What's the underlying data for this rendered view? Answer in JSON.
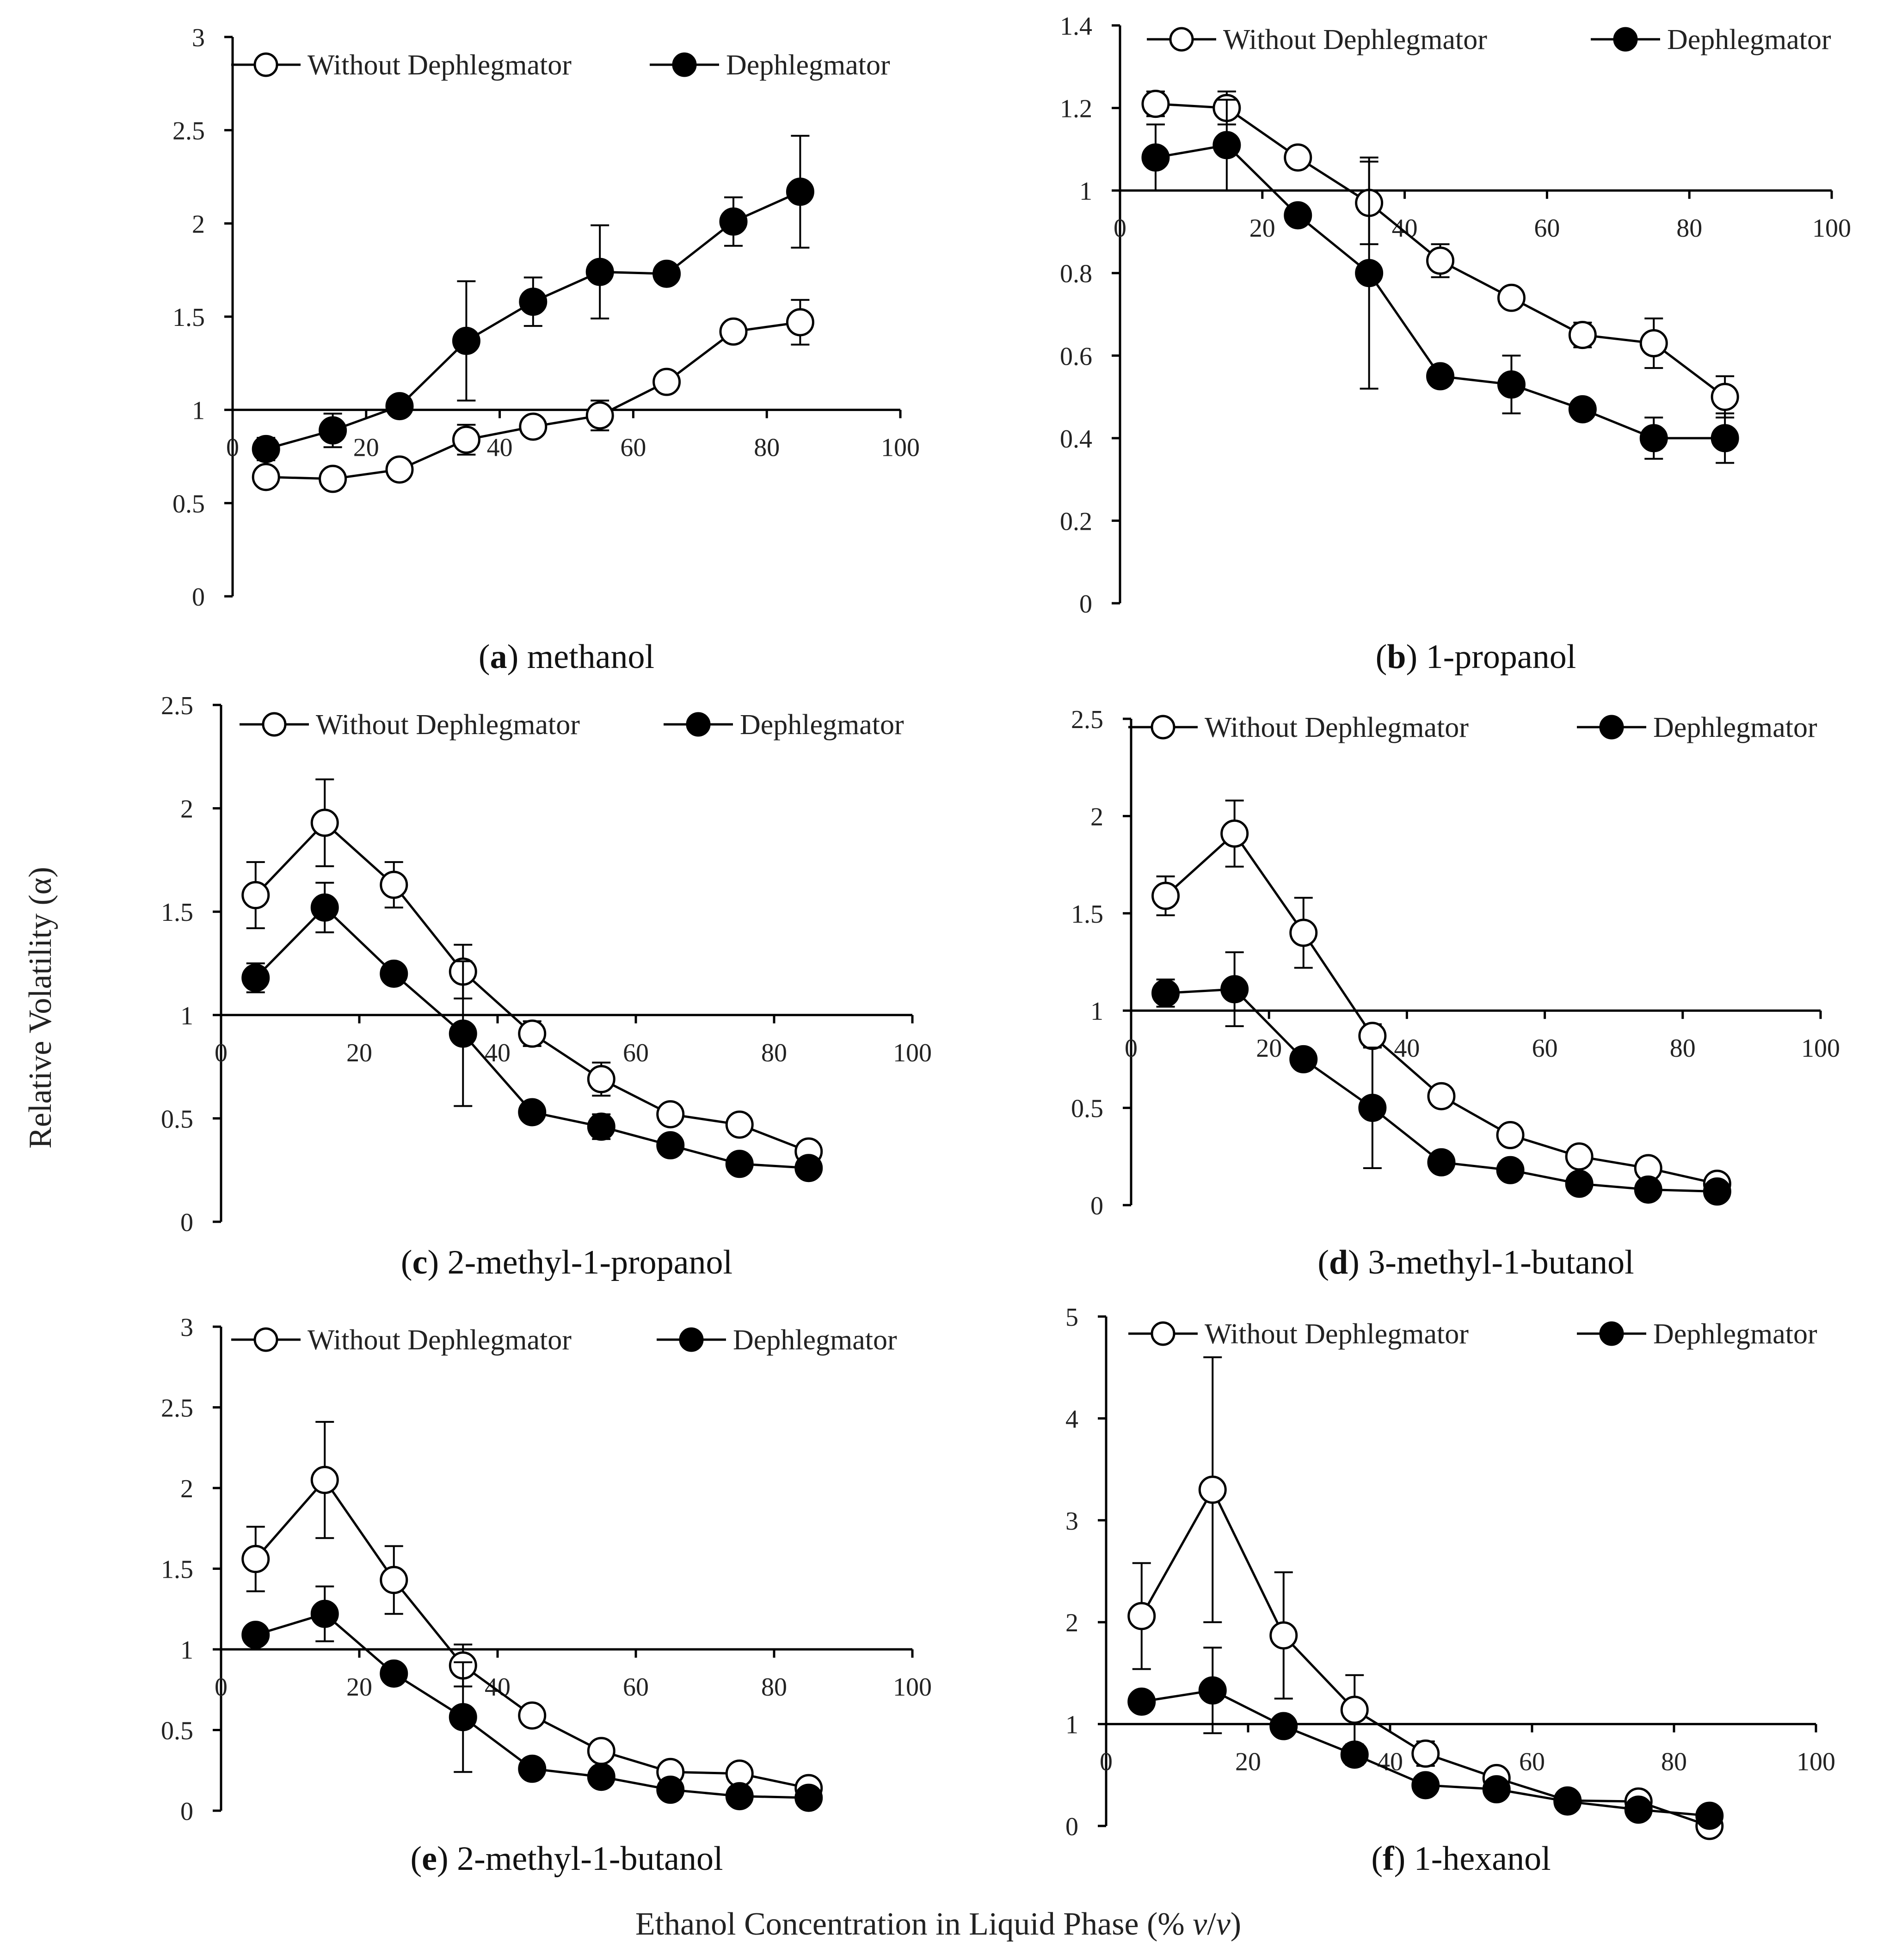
{
  "figure": {
    "y_axis_title": "Relative Volatility (α)",
    "x_axis_title": "Ethanol Concentration in Liquid Phase (% v/v)"
  },
  "chart_data": [
    {
      "type": "line",
      "panel_letter": "a",
      "caption": "methanol",
      "x": [
        5,
        15,
        25,
        35,
        45,
        55,
        65,
        75,
        85
      ],
      "xlim": [
        0,
        100
      ],
      "xticks": [
        0,
        20,
        40,
        60,
        80,
        100
      ],
      "ylim": [
        0,
        3
      ],
      "yticks": [
        0,
        0.5,
        1,
        1.5,
        2,
        2.5,
        3
      ],
      "ytick_labels": [
        "0",
        "0.5",
        "1",
        "1.5",
        "2",
        "2.5",
        "3"
      ],
      "x_axis_at": 1,
      "series": [
        {
          "name": "Without Dephlegmator",
          "marker": "open",
          "values": [
            0.64,
            0.63,
            0.68,
            0.84,
            0.91,
            0.97,
            1.15,
            1.42,
            1.47
          ],
          "errors": [
            0.03,
            0.03,
            0.03,
            0.08,
            0.03,
            0.08,
            0.03,
            0.03,
            0.12
          ]
        },
        {
          "name": "Dephlegmator",
          "marker": "filled",
          "values": [
            0.79,
            0.89,
            1.02,
            1.37,
            1.58,
            1.74,
            1.73,
            2.01,
            2.17
          ],
          "errors": [
            0.06,
            0.09,
            0.04,
            0.32,
            0.13,
            0.25,
            0.04,
            0.13,
            0.3
          ]
        }
      ]
    },
    {
      "type": "line",
      "panel_letter": "b",
      "caption": "1-propanol",
      "x": [
        5,
        15,
        25,
        35,
        45,
        55,
        65,
        75,
        85
      ],
      "xlim": [
        0,
        100
      ],
      "xticks": [
        0,
        20,
        40,
        60,
        80,
        100
      ],
      "ylim": [
        0,
        1.4
      ],
      "yticks": [
        0,
        0.2,
        0.4,
        0.6,
        0.8,
        1,
        1.2,
        1.4
      ],
      "ytick_labels": [
        "0",
        "0.2",
        "0.4",
        "0.6",
        "0.8",
        "1",
        "1.2",
        "1.4"
      ],
      "x_axis_at": 1,
      "series": [
        {
          "name": "Without Dephlegmator",
          "marker": "open",
          "values": [
            1.21,
            1.2,
            1.08,
            0.97,
            0.83,
            0.74,
            0.65,
            0.63,
            0.5
          ],
          "errors": [
            0.03,
            0.04,
            0.02,
            0.1,
            0.04,
            0.02,
            0.03,
            0.06,
            0.05
          ]
        },
        {
          "name": "Dephlegmator",
          "marker": "filled",
          "values": [
            1.08,
            1.11,
            0.94,
            0.8,
            0.55,
            0.53,
            0.47,
            0.4,
            0.4
          ],
          "errors": [
            0.08,
            0.11,
            0.02,
            0.28,
            0.02,
            0.07,
            0.02,
            0.05,
            0.06
          ]
        }
      ]
    },
    {
      "type": "line",
      "panel_letter": "c",
      "caption": "2-methyl-1-propanol",
      "x": [
        5,
        15,
        25,
        35,
        45,
        55,
        65,
        75,
        85
      ],
      "xlim": [
        0,
        100
      ],
      "xticks": [
        0,
        20,
        40,
        60,
        80,
        100
      ],
      "ylim": [
        0,
        2.5
      ],
      "yticks": [
        0,
        0.5,
        1,
        1.5,
        2,
        2.5
      ],
      "ytick_labels": [
        "0",
        "0.5",
        "1",
        "1.5",
        "2",
        "2.5"
      ],
      "x_axis_at": 1,
      "series": [
        {
          "name": "Without Dephlegmator",
          "marker": "open",
          "values": [
            1.58,
            1.93,
            1.63,
            1.21,
            0.91,
            0.69,
            0.52,
            0.47,
            0.34
          ],
          "errors": [
            0.16,
            0.21,
            0.11,
            0.13,
            0.06,
            0.08,
            0.03,
            0.03,
            0.03
          ]
        },
        {
          "name": "Dephlegmator",
          "marker": "filled",
          "values": [
            1.18,
            1.52,
            1.2,
            0.91,
            0.53,
            0.46,
            0.37,
            0.28,
            0.26
          ],
          "errors": [
            0.07,
            0.12,
            0.04,
            0.35,
            0.03,
            0.06,
            0.03,
            0.03,
            0.03
          ]
        }
      ]
    },
    {
      "type": "line",
      "panel_letter": "d",
      "caption": "3-methyl-1-butanol",
      "x": [
        5,
        15,
        25,
        35,
        45,
        55,
        65,
        75,
        85
      ],
      "xlim": [
        0,
        100
      ],
      "xticks": [
        0,
        20,
        40,
        60,
        80,
        100
      ],
      "ylim": [
        0,
        2.5
      ],
      "yticks": [
        0,
        0.5,
        1,
        1.5,
        2,
        2.5
      ],
      "ytick_labels": [
        "0",
        "0.5",
        "1",
        "1.5",
        "2",
        "2.5"
      ],
      "x_axis_at": 1,
      "series": [
        {
          "name": "Without Dephlegmator",
          "marker": "open",
          "values": [
            1.59,
            1.91,
            1.4,
            0.87,
            0.56,
            0.36,
            0.25,
            0.19,
            0.11
          ],
          "errors": [
            0.1,
            0.17,
            0.18,
            0.06,
            0.03,
            0.03,
            0.03,
            0.03,
            0.03
          ]
        },
        {
          "name": "Dephlegmator",
          "marker": "filled",
          "values": [
            1.09,
            1.11,
            0.75,
            0.5,
            0.22,
            0.18,
            0.11,
            0.08,
            0.07
          ],
          "errors": [
            0.07,
            0.19,
            0.04,
            0.31,
            0.03,
            0.03,
            0.03,
            0.03,
            0.03
          ]
        }
      ]
    },
    {
      "type": "line",
      "panel_letter": "e",
      "caption": "2-methyl-1-butanol",
      "x": [
        5,
        15,
        25,
        35,
        45,
        55,
        65,
        75,
        85
      ],
      "xlim": [
        0,
        100
      ],
      "xticks": [
        0,
        20,
        40,
        60,
        80,
        100
      ],
      "ylim": [
        0,
        3
      ],
      "yticks": [
        0,
        0.5,
        1,
        1.5,
        2,
        2.5,
        3
      ],
      "ytick_labels": [
        "0",
        "0.5",
        "1",
        "1.5",
        "2",
        "2.5",
        "3"
      ],
      "x_axis_at": 1,
      "series": [
        {
          "name": "Without Dephlegmator",
          "marker": "open",
          "values": [
            1.56,
            2.05,
            1.43,
            0.9,
            0.59,
            0.37,
            0.24,
            0.23,
            0.14
          ],
          "errors": [
            0.2,
            0.36,
            0.21,
            0.13,
            0.04,
            0.03,
            0.03,
            0.03,
            0.03
          ]
        },
        {
          "name": "Dephlegmator",
          "marker": "filled",
          "values": [
            1.09,
            1.22,
            0.85,
            0.58,
            0.26,
            0.21,
            0.13,
            0.09,
            0.08
          ],
          "errors": [
            0.05,
            0.17,
            0.04,
            0.34,
            0.03,
            0.03,
            0.03,
            0.03,
            0.03
          ]
        }
      ]
    },
    {
      "type": "line",
      "panel_letter": "f",
      "caption": "1-hexanol",
      "x": [
        5,
        15,
        25,
        35,
        45,
        55,
        65,
        75,
        85
      ],
      "xlim": [
        0,
        100
      ],
      "xticks": [
        0,
        20,
        40,
        60,
        80,
        100
      ],
      "ylim": [
        0,
        5
      ],
      "yticks": [
        0,
        1,
        2,
        3,
        4,
        5
      ],
      "ytick_labels": [
        "0",
        "1",
        "2",
        "3",
        "4",
        "5"
      ],
      "x_axis_at": 1,
      "series": [
        {
          "name": "Without Dephlegmator",
          "marker": "open",
          "values": [
            2.06,
            3.3,
            1.87,
            1.14,
            0.71,
            0.47,
            0.25,
            0.24,
            0.0
          ],
          "errors": [
            0.52,
            1.3,
            0.62,
            0.34,
            0.12,
            0.06,
            0.04,
            0.04,
            0.04
          ]
        },
        {
          "name": "Dephlegmator",
          "marker": "filled",
          "values": [
            1.22,
            1.33,
            0.98,
            0.7,
            0.4,
            0.36,
            0.24,
            0.16,
            0.1
          ],
          "errors": [
            0.08,
            0.42,
            0.04,
            0.1,
            0.04,
            0.04,
            0.04,
            0.04,
            0.04
          ]
        }
      ]
    }
  ]
}
